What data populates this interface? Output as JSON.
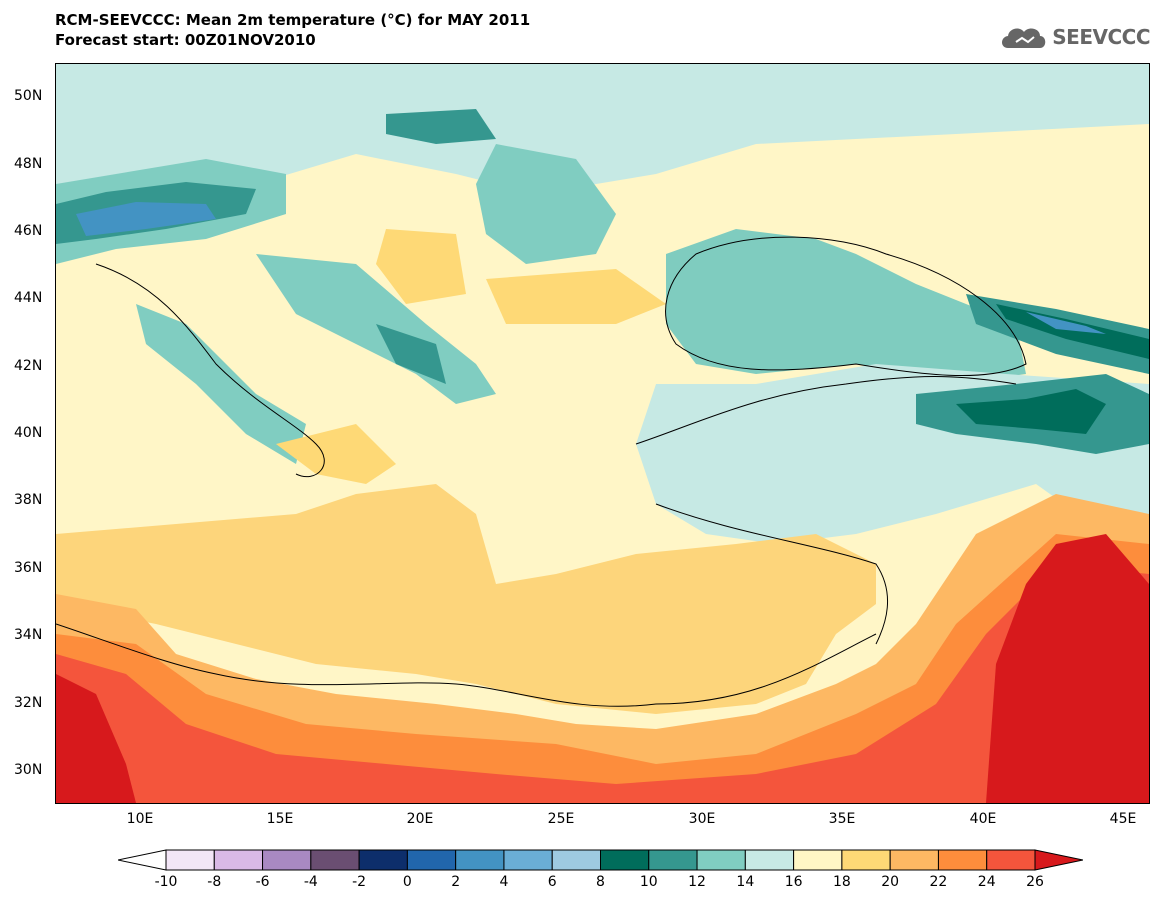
{
  "header": {
    "title": "RCM-SEEVCCC: Mean 2m temperature (°C) for MAY 2011",
    "subtitle": "Forecast start: 00Z01NOV2010"
  },
  "logo": {
    "text": "SEEVCCC",
    "icon": "cloud-logo-icon"
  },
  "map": {
    "lat_labels": [
      "50N",
      "48N",
      "46N",
      "44N",
      "42N",
      "40N",
      "38N",
      "36N",
      "34N",
      "32N",
      "30N"
    ],
    "lon_labels": [
      "10E",
      "15E",
      "20E",
      "25E",
      "30E",
      "35E",
      "40E",
      "45E"
    ],
    "regions": [
      {
        "name": "north-europe-band",
        "color": "#c6e9e4"
      },
      {
        "name": "balkan-land",
        "color": "#fff6c7"
      },
      {
        "name": "black-sea",
        "color": "#7fccbf"
      },
      {
        "name": "mediterranean-sea",
        "color": "#fdd57b"
      },
      {
        "name": "north-africa",
        "color": "#f46d43"
      },
      {
        "name": "arabia",
        "color": "#d7191c"
      },
      {
        "name": "anatolia",
        "color": "#c6e9e4"
      }
    ]
  },
  "colorbar": {
    "labels": [
      "-10",
      "-8",
      "-6",
      "-4",
      "-2",
      "0",
      "2",
      "4",
      "6",
      "8",
      "10",
      "12",
      "14",
      "16",
      "18",
      "20",
      "22",
      "24",
      "26"
    ],
    "low_color": "#ffffff",
    "high_color": "#d7191c",
    "colors": [
      "#f3e6f7",
      "#d9b9e6",
      "#a989c2",
      "#6a4e72",
      "#0d2e6b",
      "#2166ac",
      "#4393c3",
      "#6aaed6",
      "#9ecae1",
      "#006d5b",
      "#35978f",
      "#80cdc1",
      "#c7eae5",
      "#fff7c5",
      "#fed976",
      "#fdb863",
      "#fd8d3c",
      "#f4553c"
    ]
  }
}
